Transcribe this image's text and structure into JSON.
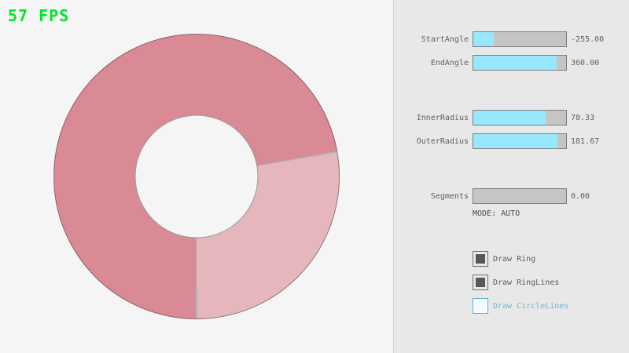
{
  "hud": {
    "fps_label": "57 FPS",
    "fps_color": "#00e430"
  },
  "ring": {
    "color_dark": "#d98a95",
    "color_light": "#e6b6bd",
    "line_color": "rgba(60,60,60,0.35)",
    "outline_color": "rgba(45,45,45,0.45)",
    "light_sector_from_deg": 80,
    "light_sector_to_deg": 180
  },
  "panel": {
    "sliders": [
      {
        "label": "StartAngle",
        "value": "-255.00",
        "fill_pct": 21.7
      },
      {
        "label": "EndAngle",
        "value": "360.00",
        "fill_pct": 90.0
      },
      {
        "label": "InnerRadius",
        "value": "78.33",
        "fill_pct": 78.3
      },
      {
        "label": "OuterRadius",
        "value": "181.67",
        "fill_pct": 90.8
      },
      {
        "label": "Segments",
        "value": "0.00",
        "fill_pct": 0
      }
    ],
    "mode_label": "MODE: AUTO",
    "checkboxes": [
      {
        "label": "Draw Ring",
        "checked": true,
        "focused": false
      },
      {
        "label": "Draw RingLines",
        "checked": true,
        "focused": false
      },
      {
        "label": "Draw CircleLines",
        "checked": false,
        "focused": true
      }
    ],
    "accent": {
      "slider_fill": "#97e8ff",
      "focus_border": "#5bb2d9",
      "focus_text": "#6cb5d6"
    }
  }
}
